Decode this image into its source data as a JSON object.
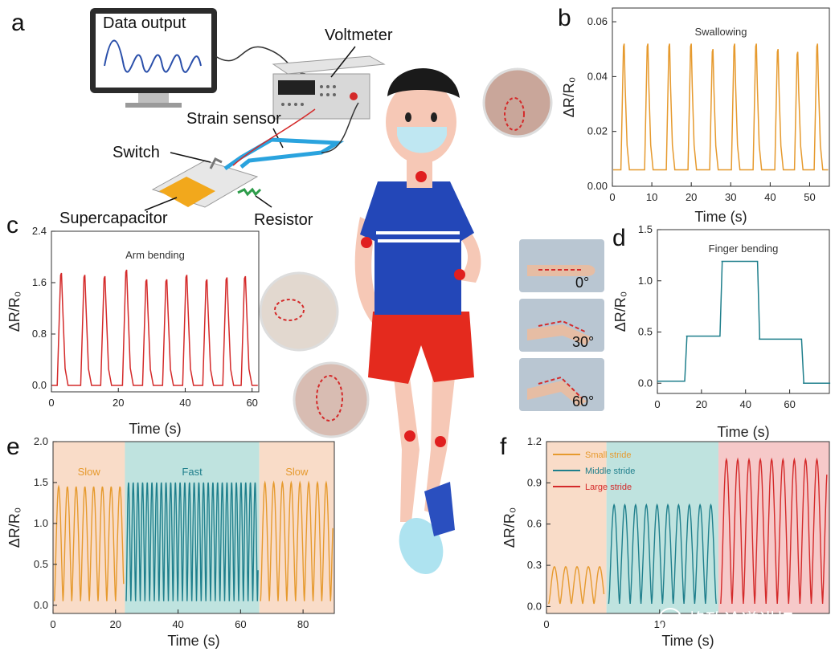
{
  "labels": {
    "a": "a",
    "b": "b",
    "c": "c",
    "d": "d",
    "e": "e",
    "f": "f",
    "data_output": "Data output",
    "voltmeter": "Voltmeter",
    "strain_sensor": "Strain sensor",
    "switch": "Switch",
    "supercapacitor": "Supercapacitor",
    "resistor": "Resistor",
    "angle0": "0°",
    "angle30": "30°",
    "angle60": "60°",
    "watermark": "格致论道讲坛"
  },
  "colors": {
    "orange": "#e69a2e",
    "red": "#d42a2a",
    "teal": "#1f7f8c",
    "blue_line": "#2a6fb0",
    "slow_bg": "#f9dcc8",
    "fast_bg": "#bfe3df",
    "large_bg": "#f6c9c9"
  },
  "chart_data": [
    {
      "id": "b",
      "type": "line",
      "title": "Swallowing",
      "xlabel": "Time (s)",
      "ylabel": "ΔR/R₀",
      "xlim": [
        0,
        55
      ],
      "ylim": [
        0,
        0.065
      ],
      "xticks": [
        "0",
        "10",
        "20",
        "30",
        "40",
        "50"
      ],
      "yticks": [
        "0.00",
        "0.02",
        "0.04",
        "0.06"
      ],
      "color": "#e69a2e",
      "baseline": 0.006,
      "peaks_x": [
        3,
        9,
        14.5,
        20,
        25.5,
        31,
        36.5,
        42,
        47,
        52
      ],
      "peaks_y": [
        0.052,
        0.052,
        0.052,
        0.052,
        0.05,
        0.052,
        0.052,
        0.05,
        0.049,
        0.052
      ],
      "peak_width": 1.2
    },
    {
      "id": "c",
      "type": "line",
      "title": "Arm bending",
      "xlabel": "Time (s)",
      "ylabel": "ΔR/R₀",
      "xlim": [
        0,
        62
      ],
      "ylim": [
        -0.1,
        2.4
      ],
      "xticks": [
        "0",
        "20",
        "40",
        "60"
      ],
      "yticks": [
        "0.0",
        "0.8",
        "1.6",
        "2.4"
      ],
      "color": "#d42a2a",
      "baseline": 0.0,
      "peaks_x": [
        3,
        10,
        16,
        22.5,
        28.5,
        34.5,
        40.5,
        46.5,
        52.5,
        58
      ],
      "peaks_y": [
        1.75,
        1.72,
        1.7,
        1.8,
        1.65,
        1.65,
        1.72,
        1.65,
        1.68,
        1.7
      ],
      "peak_width": 1.8
    },
    {
      "id": "d",
      "type": "line",
      "title": "Finger bending",
      "xlabel": "Time (s)",
      "ylabel": "ΔR/R₀",
      "xlim": [
        0,
        78
      ],
      "ylim": [
        -0.1,
        1.5
      ],
      "xticks": [
        "0",
        "20",
        "40",
        "60"
      ],
      "yticks": [
        "0.0",
        "0.5",
        "1.0",
        "1.5"
      ],
      "color": "#1f7f8c",
      "steps": [
        [
          0,
          0.02
        ],
        [
          13,
          0.46
        ],
        [
          29,
          1.19
        ],
        [
          46,
          0.43
        ],
        [
          66,
          0.0
        ],
        [
          78,
          0.0
        ]
      ]
    },
    {
      "id": "e",
      "type": "line",
      "xlabel": "Time (s)",
      "ylabel": "ΔR/R₀",
      "xlim": [
        0,
        90
      ],
      "ylim": [
        -0.1,
        2.0
      ],
      "xticks": [
        "0",
        "20",
        "40",
        "60",
        "80"
      ],
      "yticks": [
        "0.0",
        "0.5",
        "1.0",
        "1.5",
        "2.0"
      ],
      "segments": [
        {
          "name": "Slow",
          "x0": 0,
          "x1": 23,
          "color": "#e69a2e",
          "bg": "#f9dcc8",
          "period": 2.8,
          "amp": 1.4
        },
        {
          "name": "Fast",
          "x0": 23,
          "x1": 66,
          "color": "#1f7f8c",
          "bg": "#bfe3df",
          "period": 1.5,
          "amp": 1.45
        },
        {
          "name": "Slow",
          "x0": 66,
          "x1": 90,
          "color": "#e69a2e",
          "bg": "#f9dcc8",
          "period": 2.8,
          "amp": 1.45
        }
      ]
    },
    {
      "id": "f",
      "type": "line",
      "xlabel": "Time (s)",
      "ylabel": "ΔR/R₀",
      "xlim": [
        0,
        25
      ],
      "ylim": [
        -0.05,
        1.2
      ],
      "xticks": [
        "0",
        "10"
      ],
      "yticks": [
        "0.0",
        "0.3",
        "0.6",
        "0.9",
        "1.2"
      ],
      "series": [
        {
          "name": "Small stride",
          "x0": 0,
          "x1": 5.3,
          "color": "#e69a2e",
          "bg": "#f9dcc8",
          "period": 1.0,
          "amp": 0.27
        },
        {
          "name": "Middle stride",
          "x0": 5.3,
          "x1": 15.2,
          "color": "#1f7f8c",
          "bg": "#bfe3df",
          "period": 0.95,
          "amp": 0.72
        },
        {
          "name": "Large stride",
          "x0": 15.2,
          "x1": 25,
          "color": "#d42a2a",
          "bg": "#f6c9c9",
          "period": 1.0,
          "amp": 1.05
        }
      ]
    }
  ]
}
